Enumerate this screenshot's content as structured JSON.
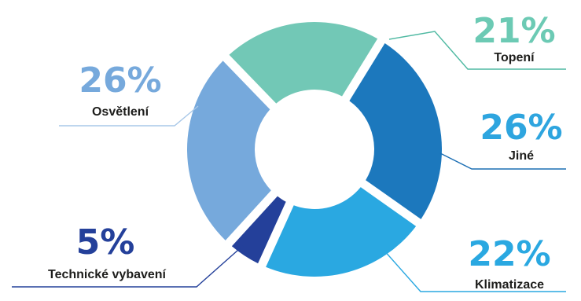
{
  "chart_data": {
    "type": "pie",
    "variant": "donut",
    "slices": [
      {
        "label": "Topení",
        "value": 21,
        "value_label": "21%",
        "color": "#72c8b6",
        "line_color": "#4fb9a2",
        "text_color": "#6ccab4"
      },
      {
        "label": "Jiné",
        "value": 26,
        "value_label": "26%",
        "color": "#1c78bd",
        "line_color": "#1c6fb4",
        "text_color": "#2ea5df"
      },
      {
        "label": "Klimatizace",
        "value": 22,
        "value_label": "22%",
        "color": "#2aa8e1",
        "line_color": "#2aa8e1",
        "text_color": "#2aa8e1"
      },
      {
        "label": "Technické vybavení",
        "value": 5,
        "value_label": "5%",
        "color": "#24409a",
        "line_color": "#24409a",
        "text_color": "#24409a"
      },
      {
        "label": "Osvětlení",
        "value": 26,
        "value_label": "26%",
        "color": "#76a9dc",
        "line_color": "#a9c8e8",
        "text_color": "#76a9dc"
      }
    ]
  }
}
